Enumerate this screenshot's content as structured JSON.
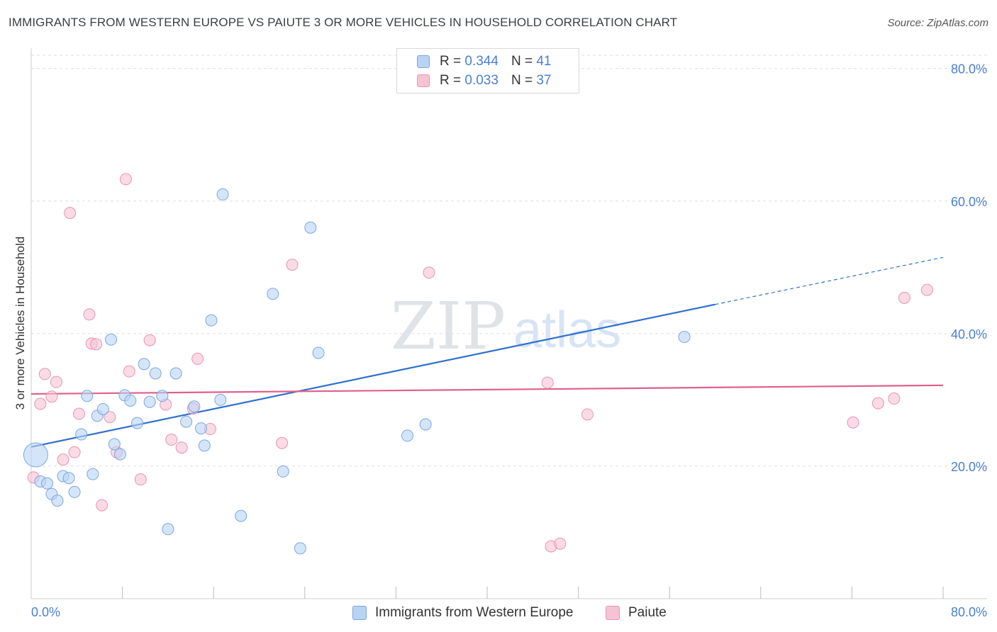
{
  "title": "IMMIGRANTS FROM WESTERN EUROPE VS PAIUTE 3 OR MORE VEHICLES IN HOUSEHOLD CORRELATION CHART",
  "source": "Source: ZipAtlas.com",
  "watermark": {
    "zip": "ZIP",
    "atlas": "atlas"
  },
  "legend": {
    "rows": [
      {
        "r_label": "R =",
        "r_value": "0.344",
        "n_label": "N =",
        "n_value": "41"
      },
      {
        "r_label": "R =",
        "r_value": "0.033",
        "n_label": "N =",
        "n_value": "37"
      }
    ]
  },
  "bottom_legend": {
    "series1": "Immigrants from Western Europe",
    "series2": "Paiute"
  },
  "chart_data": {
    "type": "scatter",
    "title": "IMMIGRANTS FROM WESTERN EUROPE VS PAIUTE 3 OR MORE VEHICLES IN HOUSEHOLD CORRELATION CHART",
    "xlabel": "",
    "ylabel": "3 or more Vehicles in Household",
    "xlim": [
      0,
      80
    ],
    "ylim": [
      0,
      82
    ],
    "x_tick_labels": [
      "0.0%",
      "80.0%"
    ],
    "y_ticks": [
      20,
      40,
      60,
      80
    ],
    "y_tick_labels": [
      "20.0%",
      "40.0%",
      "60.0%",
      "80.0%"
    ],
    "grid": true,
    "legend_position": "top-center",
    "colors": {
      "series1_fill": "#b9d3f5",
      "series1_stroke": "#7aa6e0",
      "series1_line": "#2f6fcf",
      "series2_fill": "#f7c3d4",
      "series2_stroke": "#e993b1",
      "series2_line": "#e0608c",
      "grid": "#dddddd",
      "axis_text": "#4a7fd4"
    },
    "series": [
      {
        "name": "Immigrants from Western Europe",
        "r": 0.344,
        "n": 41,
        "trend": {
          "x": [
            0,
            60
          ],
          "y": [
            22.9,
            44.4
          ]
        },
        "trend_extension": {
          "x": [
            60,
            80
          ],
          "y": [
            44.4,
            51.5
          ]
        },
        "points": [
          {
            "x": 0.4,
            "y": 21.7,
            "big": true
          },
          {
            "x": 0.8,
            "y": 17.7
          },
          {
            "x": 1.4,
            "y": 17.4
          },
          {
            "x": 1.8,
            "y": 15.8
          },
          {
            "x": 2.3,
            "y": 14.8
          },
          {
            "x": 2.8,
            "y": 18.5
          },
          {
            "x": 3.3,
            "y": 18.2
          },
          {
            "x": 3.8,
            "y": 16.1
          },
          {
            "x": 4.4,
            "y": 24.8
          },
          {
            "x": 4.9,
            "y": 30.6
          },
          {
            "x": 5.4,
            "y": 18.8
          },
          {
            "x": 5.8,
            "y": 27.6
          },
          {
            "x": 6.3,
            "y": 28.6
          },
          {
            "x": 7.0,
            "y": 39.1
          },
          {
            "x": 7.3,
            "y": 23.3
          },
          {
            "x": 7.8,
            "y": 21.8
          },
          {
            "x": 8.2,
            "y": 30.7
          },
          {
            "x": 8.7,
            "y": 29.9
          },
          {
            "x": 9.3,
            "y": 26.5
          },
          {
            "x": 9.9,
            "y": 35.4
          },
          {
            "x": 10.4,
            "y": 29.7
          },
          {
            "x": 10.9,
            "y": 34.0
          },
          {
            "x": 11.5,
            "y": 30.6
          },
          {
            "x": 12.0,
            "y": 10.5
          },
          {
            "x": 12.7,
            "y": 34.0
          },
          {
            "x": 13.6,
            "y": 26.7
          },
          {
            "x": 14.3,
            "y": 29.0
          },
          {
            "x": 14.9,
            "y": 25.7
          },
          {
            "x": 15.2,
            "y": 23.1
          },
          {
            "x": 15.8,
            "y": 42.0
          },
          {
            "x": 16.6,
            "y": 30.0
          },
          {
            "x": 16.8,
            "y": 61.0
          },
          {
            "x": 18.4,
            "y": 12.5
          },
          {
            "x": 21.2,
            "y": 46.0
          },
          {
            "x": 22.1,
            "y": 19.2
          },
          {
            "x": 23.6,
            "y": 7.6
          },
          {
            "x": 24.5,
            "y": 56.0
          },
          {
            "x": 25.2,
            "y": 37.1
          },
          {
            "x": 33.0,
            "y": 24.6
          },
          {
            "x": 34.6,
            "y": 26.3
          },
          {
            "x": 57.3,
            "y": 39.5
          }
        ]
      },
      {
        "name": "Paiute",
        "r": 0.033,
        "n": 37,
        "trend": {
          "x": [
            0,
            80
          ],
          "y": [
            30.9,
            32.2
          ]
        },
        "points": [
          {
            "x": 0.2,
            "y": 18.3
          },
          {
            "x": 0.8,
            "y": 29.4
          },
          {
            "x": 1.2,
            "y": 33.9
          },
          {
            "x": 1.8,
            "y": 30.5
          },
          {
            "x": 2.2,
            "y": 32.7
          },
          {
            "x": 2.8,
            "y": 21.0
          },
          {
            "x": 3.4,
            "y": 58.2
          },
          {
            "x": 3.8,
            "y": 22.1
          },
          {
            "x": 4.2,
            "y": 27.9
          },
          {
            "x": 5.1,
            "y": 42.9
          },
          {
            "x": 5.3,
            "y": 38.5
          },
          {
            "x": 5.7,
            "y": 38.4
          },
          {
            "x": 6.2,
            "y": 14.1
          },
          {
            "x": 6.9,
            "y": 27.4
          },
          {
            "x": 7.5,
            "y": 22.1
          },
          {
            "x": 8.3,
            "y": 63.3
          },
          {
            "x": 8.6,
            "y": 34.3
          },
          {
            "x": 9.6,
            "y": 18.0
          },
          {
            "x": 10.4,
            "y": 39.0
          },
          {
            "x": 11.8,
            "y": 29.3
          },
          {
            "x": 12.3,
            "y": 24.0
          },
          {
            "x": 13.2,
            "y": 22.8
          },
          {
            "x": 14.2,
            "y": 28.7
          },
          {
            "x": 14.6,
            "y": 36.2
          },
          {
            "x": 15.7,
            "y": 25.6
          },
          {
            "x": 22.0,
            "y": 23.5
          },
          {
            "x": 22.9,
            "y": 50.4
          },
          {
            "x": 34.9,
            "y": 49.2
          },
          {
            "x": 45.3,
            "y": 32.6
          },
          {
            "x": 45.6,
            "y": 7.9
          },
          {
            "x": 46.4,
            "y": 8.3
          },
          {
            "x": 48.8,
            "y": 27.8
          },
          {
            "x": 72.1,
            "y": 26.6
          },
          {
            "x": 74.3,
            "y": 29.5
          },
          {
            "x": 75.7,
            "y": 30.2
          },
          {
            "x": 76.6,
            "y": 45.4
          },
          {
            "x": 78.6,
            "y": 46.6
          }
        ]
      }
    ]
  }
}
